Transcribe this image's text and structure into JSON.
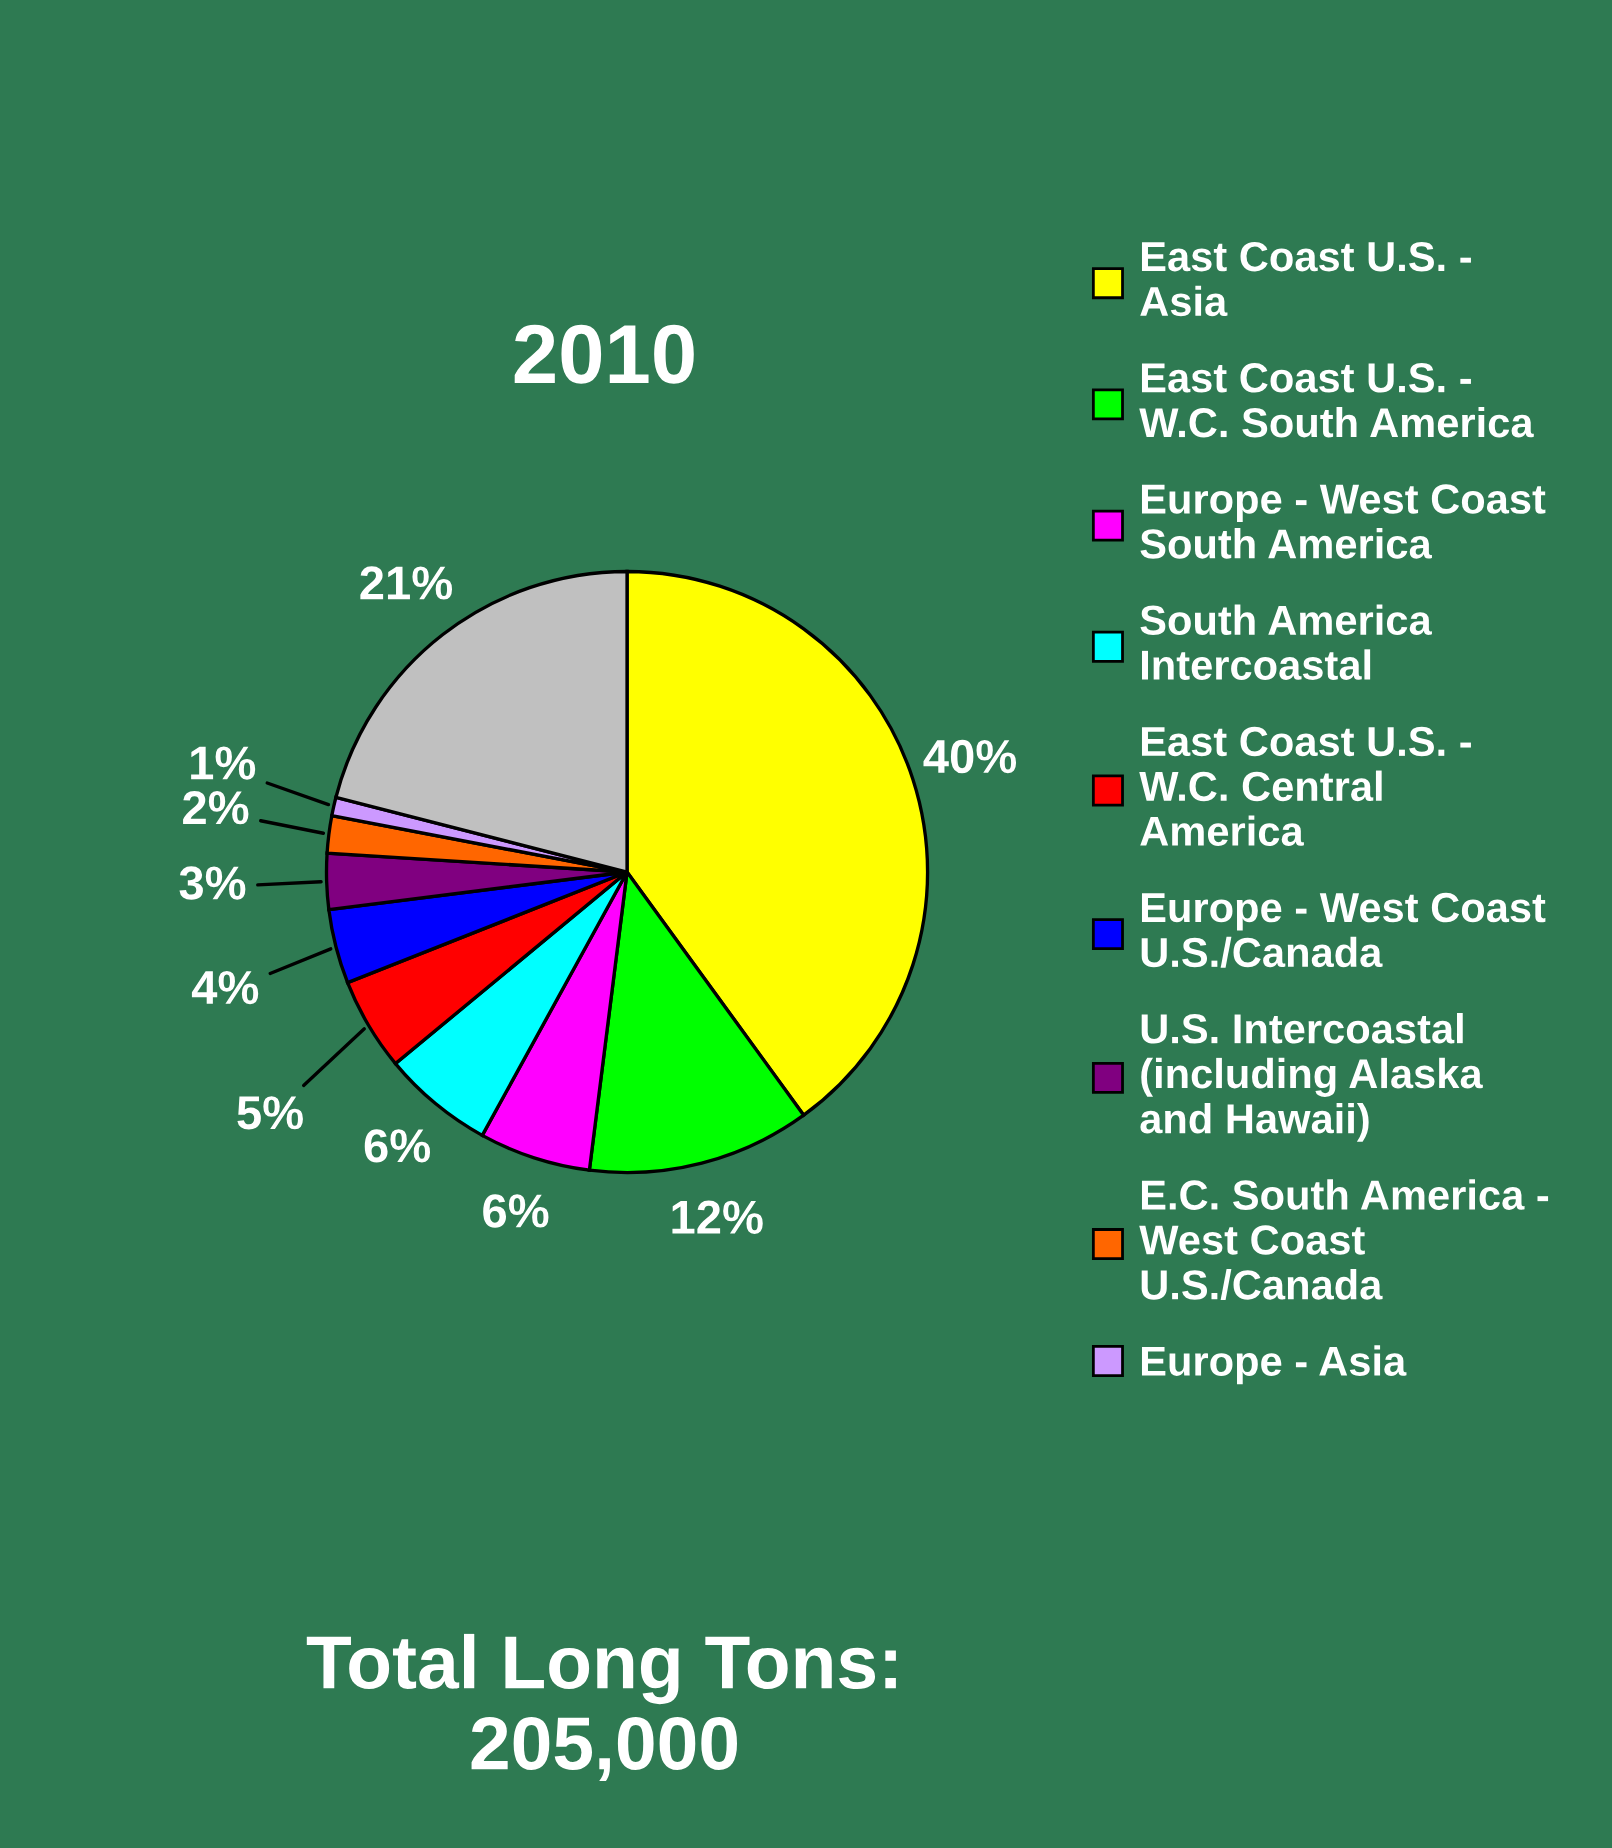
{
  "chart_data": {
    "type": "pie",
    "title": "2010",
    "categories": [
      "East Coast U.S. -\nAsia",
      "East Coast U.S. -\nW.C. South America",
      "Europe - West Coast\nSouth America",
      "South America\nIntercoastal",
      "East Coast U.S. -\nW.C. Central\nAmerica",
      "Europe - West Coast\nU.S./Canada",
      "U.S. Intercoastal\n(including Alaska\nand Hawaii)",
      "E.C. South America -\nWest Coast\nU.S./Canada",
      "Europe - Asia",
      null
    ],
    "values": [
      40,
      12,
      6,
      6,
      5,
      4,
      3,
      2,
      1,
      21
    ],
    "value_labels": [
      "40%",
      "12%",
      "6%",
      "6%",
      "5%",
      "4%",
      "3%",
      "2%",
      "1%",
      "21%"
    ],
    "colors": [
      "#ffff00",
      "#00ff00",
      "#ff00ff",
      "#00ffff",
      "#ff0000",
      "#0000ff",
      "#800080",
      "#ff6600",
      "#cc99ff",
      "#c0c0c0"
    ],
    "legend": "right",
    "annotations": [
      "Total Long Tons:\n205,000"
    ]
  }
}
